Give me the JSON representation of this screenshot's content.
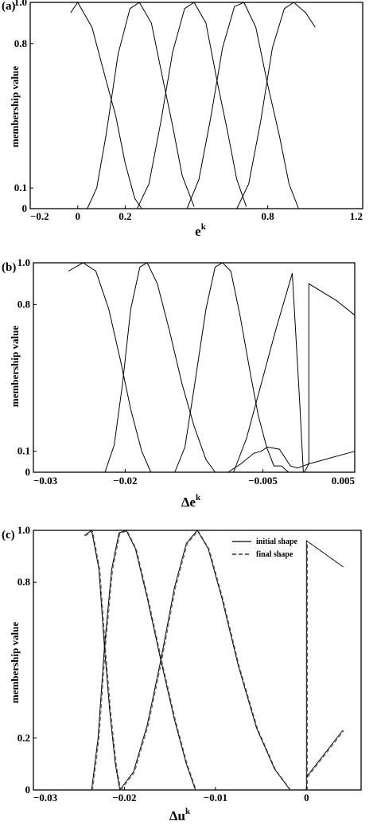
{
  "chart_data": [
    {
      "panel": "(a)",
      "type": "line",
      "xlabel": "e",
      "xlabel_sup": "k",
      "ylabel": "membership value",
      "xlim": [
        -0.2,
        1.2
      ],
      "x_ticks": [
        {
          "v": -0.2,
          "label": "−0.2"
        },
        {
          "v": 0,
          "label": "0"
        },
        {
          "v": 0.2,
          "label": "0.2"
        },
        {
          "v": 0.8,
          "label": "0.8"
        },
        {
          "v": 1.2,
          "label": "1.2"
        }
      ],
      "y_ticks": [
        {
          "v": 0,
          "label": "0"
        },
        {
          "v": 0.1,
          "label": "0.1"
        },
        {
          "v": 0.8,
          "label": "0.8"
        },
        {
          "v": 1.0,
          "label": "1.0"
        }
      ],
      "series": [
        {
          "points": [
            [
              -0.03,
              0.95
            ],
            [
              0.0,
              1.0
            ],
            [
              0.06,
              0.88
            ],
            [
              0.12,
              0.62
            ],
            [
              0.16,
              0.45
            ],
            [
              0.2,
              0.22
            ],
            [
              0.24,
              0.05
            ],
            [
              0.27,
              0.0
            ]
          ]
        },
        {
          "points": [
            [
              0.04,
              0.0
            ],
            [
              0.08,
              0.1
            ],
            [
              0.12,
              0.36
            ],
            [
              0.17,
              0.75
            ],
            [
              0.22,
              0.97
            ],
            [
              0.26,
              1.0
            ],
            [
              0.31,
              0.9
            ],
            [
              0.36,
              0.62
            ],
            [
              0.4,
              0.4
            ],
            [
              0.44,
              0.16
            ],
            [
              0.49,
              0.01
            ]
          ]
        },
        {
          "points": [
            [
              0.25,
              0.0
            ],
            [
              0.3,
              0.12
            ],
            [
              0.35,
              0.42
            ],
            [
              0.4,
              0.76
            ],
            [
              0.45,
              0.97
            ],
            [
              0.49,
              1.0
            ],
            [
              0.54,
              0.9
            ],
            [
              0.59,
              0.6
            ],
            [
              0.63,
              0.38
            ],
            [
              0.67,
              0.14
            ],
            [
              0.71,
              0.01
            ]
          ]
        },
        {
          "points": [
            [
              0.46,
              0.0
            ],
            [
              0.51,
              0.14
            ],
            [
              0.56,
              0.44
            ],
            [
              0.61,
              0.78
            ],
            [
              0.66,
              0.98
            ],
            [
              0.7,
              1.0
            ],
            [
              0.75,
              0.88
            ],
            [
              0.8,
              0.6
            ],
            [
              0.85,
              0.35
            ],
            [
              0.89,
              0.12
            ],
            [
              0.93,
              0.0
            ]
          ]
        },
        {
          "points": [
            [
              0.67,
              0.0
            ],
            [
              0.72,
              0.12
            ],
            [
              0.77,
              0.42
            ],
            [
              0.82,
              0.78
            ],
            [
              0.87,
              0.97
            ],
            [
              0.91,
              1.0
            ],
            [
              0.96,
              0.95
            ],
            [
              1.0,
              0.88
            ]
          ]
        }
      ]
    },
    {
      "panel": "(b)",
      "type": "line",
      "xlabel": "Δe",
      "xlabel_sup": "k",
      "ylabel": "membership value",
      "xlim": [
        -0.03,
        0.005
      ],
      "x_ticks": [
        {
          "v": -0.03,
          "label": "−0.03"
        },
        {
          "v": -0.02,
          "label": "−0.02"
        },
        {
          "v": -0.005,
          "label": "−0.005"
        },
        {
          "v": 0.005,
          "label": "0.005"
        }
      ],
      "y_ticks": [
        {
          "v": 0,
          "label": "0"
        },
        {
          "v": 0.1,
          "label": "0.1"
        },
        {
          "v": 0.8,
          "label": "0.8"
        },
        {
          "v": 1.0,
          "label": "1.0"
        }
      ],
      "series": [
        {
          "points": [
            [
              -0.0262,
              0.96
            ],
            [
              -0.0246,
              1.0
            ],
            [
              -0.0232,
              0.96
            ],
            [
              -0.0218,
              0.78
            ],
            [
              -0.0205,
              0.53
            ],
            [
              -0.0194,
              0.3
            ],
            [
              -0.0182,
              0.1
            ],
            [
              -0.0172,
              0.0
            ]
          ]
        },
        {
          "points": [
            [
              -0.0222,
              0.0
            ],
            [
              -0.0212,
              0.13
            ],
            [
              -0.0203,
              0.42
            ],
            [
              -0.0194,
              0.78
            ],
            [
              -0.0184,
              0.98
            ],
            [
              -0.0176,
              1.0
            ],
            [
              -0.0165,
              0.9
            ],
            [
              -0.0152,
              0.68
            ],
            [
              -0.0138,
              0.42
            ],
            [
              -0.0125,
              0.22
            ],
            [
              -0.0112,
              0.06
            ],
            [
              -0.0102,
              0.0
            ]
          ]
        },
        {
          "points": [
            [
              -0.0146,
              0.0
            ],
            [
              -0.0135,
              0.12
            ],
            [
              -0.0125,
              0.4
            ],
            [
              -0.0112,
              0.78
            ],
            [
              -0.0102,
              0.98
            ],
            [
              -0.0094,
              1.0
            ],
            [
              -0.0085,
              0.96
            ],
            [
              -0.0075,
              0.75
            ],
            [
              -0.0064,
              0.48
            ],
            [
              -0.0055,
              0.27
            ],
            [
              -0.0046,
              0.12
            ],
            [
              -0.0038,
              0.03
            ],
            [
              -0.003,
              0.03
            ],
            [
              -0.0022,
              0.0
            ]
          ]
        },
        {
          "points": [
            [
              -0.0088,
              0.0
            ],
            [
              -0.0074,
              0.04
            ],
            [
              -0.006,
              0.09
            ],
            [
              -0.0052,
              0.1
            ],
            [
              -0.0045,
              0.12
            ],
            [
              -0.0032,
              0.11
            ],
            [
              -0.002,
              0.03
            ],
            [
              -0.0012,
              0.02
            ],
            [
              0.0,
              0.04
            ],
            [
              0.005,
              0.1
            ]
          ]
        },
        {
          "points": [
            [
              -0.0082,
              0.0
            ],
            [
              -0.0068,
              0.16
            ],
            [
              -0.0052,
              0.42
            ],
            [
              -0.0036,
              0.68
            ],
            [
              -0.0024,
              0.86
            ],
            [
              -0.0018,
              0.95
            ],
            [
              -0.001,
              0.34
            ],
            [
              -0.0006,
              0.0
            ]
          ]
        },
        {
          "points": [
            [
              -0.0005,
              0.0
            ],
            [
              0.0,
              0.04
            ],
            [
              0.0,
              0.9
            ],
            [
              0.003,
              0.82
            ],
            [
              0.005,
              0.75
            ]
          ]
        }
      ]
    },
    {
      "panel": "(c)",
      "type": "line",
      "xlabel": "Δu",
      "xlabel_sup": "k",
      "ylabel": "membership value",
      "xlim": [
        -0.03,
        0.006
      ],
      "x_ticks": [
        {
          "v": -0.03,
          "label": "−0.03"
        },
        {
          "v": -0.02,
          "label": "−0.02"
        },
        {
          "v": -0.01,
          "label": "−0.01"
        },
        {
          "v": 0,
          "label": "0"
        }
      ],
      "y_ticks": [
        {
          "v": 0,
          "label": "0"
        },
        {
          "v": 0.2,
          "label": "0.2"
        },
        {
          "v": 0.8,
          "label": "0.8"
        },
        {
          "v": 1.0,
          "label": "1.0"
        }
      ],
      "legend": [
        {
          "label": "initial shape",
          "style": "solid"
        },
        {
          "label": "final shape",
          "style": "dashed"
        }
      ],
      "series": [
        {
          "points": [
            [
              -0.0244,
              0.98
            ],
            [
              -0.0236,
              1.0
            ],
            [
              -0.0228,
              0.85
            ],
            [
              -0.0222,
              0.55
            ],
            [
              -0.0216,
              0.3
            ],
            [
              -0.021,
              0.1
            ],
            [
              -0.0205,
              0.0
            ]
          ]
        },
        {
          "points": [
            [
              -0.0236,
              0.0
            ],
            [
              -0.0229,
              0.2
            ],
            [
              -0.0222,
              0.55
            ],
            [
              -0.0214,
              0.85
            ],
            [
              -0.0206,
              0.99
            ],
            [
              -0.0198,
              1.0
            ],
            [
              -0.0188,
              0.93
            ],
            [
              -0.0175,
              0.74
            ],
            [
              -0.016,
              0.5
            ],
            [
              -0.0145,
              0.27
            ],
            [
              -0.0132,
              0.1
            ],
            [
              -0.0122,
              0.0
            ]
          ]
        },
        {
          "points": [
            [
              -0.0205,
              0.0
            ],
            [
              -0.019,
              0.07
            ],
            [
              -0.0175,
              0.25
            ],
            [
              -0.016,
              0.5
            ],
            [
              -0.0145,
              0.78
            ],
            [
              -0.0132,
              0.95
            ],
            [
              -0.012,
              1.0
            ],
            [
              -0.0108,
              0.93
            ],
            [
              -0.0093,
              0.74
            ],
            [
              -0.0075,
              0.48
            ],
            [
              -0.0055,
              0.24
            ],
            [
              -0.0035,
              0.08
            ],
            [
              -0.0018,
              0.0
            ]
          ]
        },
        {
          "points": [
            [
              0.0,
              0.0
            ],
            [
              0.0,
              0.96
            ],
            [
              0.004,
              0.86
            ]
          ]
        },
        {
          "points": [
            [
              0.0,
              0.05
            ],
            [
              0.004,
              0.23
            ]
          ]
        }
      ]
    }
  ]
}
